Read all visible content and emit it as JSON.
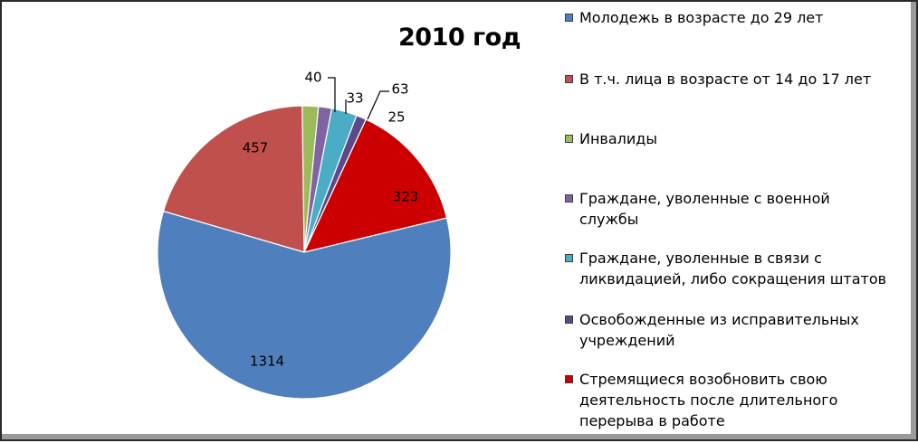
{
  "chart_data": {
    "type": "pie",
    "title": "2010 год",
    "slices": [
      {
        "label": "Молодежь в возрасте до 29 лет",
        "value": 1314,
        "color": "#4f7fbd"
      },
      {
        "label": "В т.ч. лица в возрасте от 14 до 17 лет",
        "value": 457,
        "color": "#c0504d"
      },
      {
        "label": "Инвалиды",
        "value": 40,
        "color": "#9bbb59"
      },
      {
        "label": "Граждане, уволенные с военной службы",
        "value": 33,
        "color": "#8064a2"
      },
      {
        "label": "Граждане, уволенные в связи с ликвидацией, либо сокращения штатов",
        "value": 63,
        "color": "#4bacc6"
      },
      {
        "label": "Освобожденные из исправительных учреждений",
        "value": 25,
        "color": "#5b4a8a"
      },
      {
        "label": "Стремящиеся возобновить свою деятельность после длительного перерыва в работе",
        "value": 323,
        "color": "#cc0000"
      }
    ],
    "legend_position": "right"
  }
}
